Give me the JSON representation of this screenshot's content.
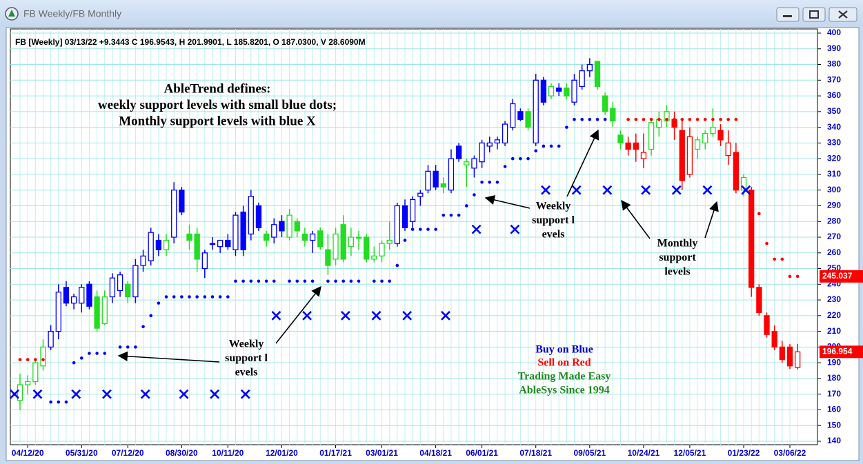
{
  "window_title": "FB Weekly/FB Monthly",
  "chart_data": {
    "type": "candlestick",
    "header": "FB [Weekly] 03/13/22 +9.3443 C 196.9543, H 201.9901, L 185.8201, O 187.0300, V 28.6090M",
    "categories": [
      null,
      "04/12/20",
      null,
      null,
      null,
      null,
      null,
      null,
      "05/31/20",
      null,
      null,
      null,
      null,
      null,
      "07/12/20",
      null,
      null,
      null,
      null,
      null,
      null,
      "08/30/20",
      null,
      null,
      null,
      null,
      null,
      "10/11/20",
      null,
      null,
      null,
      null,
      null,
      null,
      "12/01/20",
      null,
      null,
      null,
      null,
      null,
      null,
      "01/17/21",
      null,
      null,
      null,
      null,
      null,
      "03/01/21",
      null,
      null,
      null,
      null,
      null,
      null,
      "04/18/21",
      null,
      null,
      null,
      null,
      null,
      "06/01/21",
      null,
      null,
      null,
      null,
      null,
      null,
      "07/18/21",
      null,
      null,
      null,
      null,
      null,
      null,
      "09/05/21",
      null,
      null,
      null,
      null,
      null,
      null,
      "10/24/21",
      null,
      null,
      null,
      null,
      null,
      "12/05/21",
      null,
      null,
      null,
      null,
      null,
      null,
      "01/23/22",
      null,
      null,
      null,
      null,
      null,
      "03/06/22",
      null
    ],
    "open": [
      166,
      176,
      178,
      188,
      200,
      210,
      238,
      228,
      228,
      240,
      232,
      215,
      232,
      236,
      240,
      232,
      252,
      255,
      268,
      262,
      270,
      300,
      272,
      272,
      250,
      266,
      264,
      268,
      262,
      286,
      272,
      290,
      272,
      270,
      280,
      270,
      280,
      272,
      268,
      274,
      262,
      256,
      278,
      264,
      270,
      270,
      256,
      258,
      266,
      266,
      290,
      280,
      296,
      300,
      312,
      304,
      300,
      328,
      316,
      314,
      318,
      328,
      330,
      330,
      340,
      350,
      350,
      330,
      370,
      360,
      365,
      365,
      356,
      366,
      376,
      382,
      360,
      352,
      335,
      330,
      330,
      320,
      326,
      340,
      344,
      345,
      338,
      310,
      326,
      330,
      336,
      338,
      322,
      324,
      300,
      300,
      238,
      220,
      210,
      200,
      200,
      187.03
    ],
    "high": [
      183,
      182,
      192,
      205,
      214,
      240,
      242,
      234,
      240,
      242,
      236,
      236,
      247,
      248,
      242,
      256,
      262,
      276,
      272,
      272,
      305,
      302,
      278,
      276,
      262,
      270,
      268,
      272,
      286,
      290,
      300,
      292,
      274,
      282,
      284,
      288,
      282,
      276,
      274,
      276,
      272,
      276,
      284,
      276,
      274,
      272,
      264,
      268,
      280,
      292,
      294,
      296,
      300,
      316,
      316,
      308,
      326,
      330,
      320,
      322,
      332,
      334,
      334,
      344,
      358,
      352,
      352,
      374,
      372,
      368,
      368,
      368,
      374,
      380,
      384,
      382,
      362,
      356,
      338,
      334,
      336,
      336,
      346,
      350,
      354,
      350,
      344,
      340,
      334,
      338,
      352,
      342,
      338,
      330,
      310,
      302,
      240,
      222,
      214,
      204,
      202,
      201.99
    ],
    "low": [
      160,
      170,
      176,
      185,
      198,
      205,
      226,
      224,
      222,
      224,
      210,
      214,
      228,
      232,
      228,
      228,
      248,
      252,
      258,
      258,
      266,
      284,
      262,
      248,
      244,
      262,
      260,
      262,
      258,
      258,
      268,
      274,
      264,
      266,
      270,
      268,
      270,
      264,
      260,
      262,
      246,
      252,
      254,
      258,
      262,
      254,
      254,
      254,
      262,
      264,
      274,
      276,
      290,
      298,
      300,
      298,
      298,
      318,
      302,
      308,
      314,
      324,
      326,
      328,
      338,
      344,
      338,
      328,
      354,
      358,
      360,
      358,
      354,
      364,
      372,
      364,
      348,
      340,
      326,
      322,
      318,
      314,
      322,
      334,
      340,
      332,
      300,
      308,
      320,
      326,
      334,
      328,
      316,
      298,
      296,
      232,
      220,
      206,
      198,
      190,
      186,
      185.82
    ],
    "close": [
      176,
      178,
      190,
      200,
      210,
      235,
      228,
      232,
      238,
      226,
      212,
      232,
      244,
      246,
      232,
      252,
      258,
      273,
      262,
      268,
      300,
      286,
      268,
      256,
      260,
      266,
      268,
      264,
      284,
      262,
      296,
      276,
      268,
      278,
      274,
      284,
      274,
      268,
      272,
      264,
      252,
      272,
      256,
      270,
      270,
      256,
      258,
      266,
      268,
      290,
      276,
      294,
      298,
      312,
      302,
      302,
      320,
      320,
      318,
      320,
      330,
      330,
      332,
      342,
      355,
      345,
      340,
      370,
      356,
      366,
      363,
      360,
      370,
      376,
      380,
      366,
      350,
      344,
      330,
      326,
      326,
      324,
      343,
      345,
      350,
      340,
      306,
      334,
      332,
      336,
      340,
      332,
      330,
      300,
      308,
      238,
      222,
      208,
      200,
      192,
      188,
      196.9543
    ],
    "trend": [
      "g",
      "g",
      "g",
      "g",
      "b",
      "b",
      "b",
      "b",
      "b",
      "b",
      "g",
      "g",
      "b",
      "b",
      "g",
      "b",
      "b",
      "b",
      "b",
      "g",
      "b",
      "b",
      "g",
      "g",
      "b",
      "b",
      "b",
      "b",
      "b",
      "b",
      "b",
      "b",
      "g",
      "b",
      "b",
      "g",
      "g",
      "g",
      "b",
      "g",
      "g",
      "g",
      "g",
      "g",
      "g",
      "g",
      "g",
      "g",
      "g",
      "b",
      "b",
      "b",
      "b",
      "b",
      "b",
      "g",
      "b",
      "b",
      "g",
      "b",
      "b",
      "b",
      "b",
      "b",
      "b",
      "b",
      "g",
      "b",
      "b",
      "g",
      "b",
      "g",
      "b",
      "b",
      "b",
      "g",
      "g",
      "g",
      "g",
      "r",
      "r",
      "r",
      "g",
      "g",
      "g",
      "r",
      "r",
      "r",
      "g",
      "g",
      "g",
      "r",
      "r",
      "r",
      "g",
      "r",
      "r",
      "r",
      "r",
      "r",
      "r",
      "r"
    ],
    "palette": {
      "b": "#0000ff",
      "g": "#22dd22",
      "r": "#ff0000"
    },
    "weekly_support": {
      "color": "#0000ff",
      "values": [
        null,
        null,
        null,
        null,
        165,
        165,
        165,
        190,
        193,
        196,
        196,
        196,
        null,
        200,
        200,
        200,
        213,
        220,
        228,
        232,
        232,
        232,
        232,
        232,
        232,
        232,
        232,
        232,
        242,
        242,
        242,
        242,
        242,
        242,
        null,
        242,
        242,
        242,
        242,
        null,
        242,
        242,
        242,
        242,
        242,
        null,
        242,
        242,
        242,
        252,
        268,
        275,
        275,
        275,
        275,
        284,
        284,
        284,
        290,
        297,
        305,
        305,
        305,
        315,
        320,
        320,
        320,
        325,
        328,
        328,
        328,
        340,
        345,
        345,
        345,
        345,
        345,
        null,
        null,
        null,
        null,
        null,
        null,
        null,
        null,
        null,
        null,
        null,
        null,
        null,
        null,
        null,
        null,
        null,
        null,
        null,
        null,
        null,
        null,
        null,
        null,
        null
      ]
    },
    "weekly_resistance": {
      "color": "#ff0000",
      "values": [
        192,
        192,
        192,
        192,
        null,
        null,
        null,
        null,
        null,
        null,
        null,
        null,
        null,
        null,
        null,
        null,
        null,
        null,
        null,
        null,
        null,
        null,
        null,
        null,
        null,
        null,
        null,
        null,
        null,
        null,
        null,
        null,
        null,
        null,
        null,
        null,
        null,
        null,
        null,
        null,
        null,
        null,
        null,
        null,
        null,
        null,
        null,
        null,
        null,
        null,
        null,
        null,
        null,
        null,
        null,
        null,
        null,
        null,
        null,
        null,
        null,
        null,
        null,
        null,
        null,
        null,
        null,
        null,
        null,
        null,
        null,
        null,
        null,
        null,
        null,
        null,
        null,
        null,
        null,
        345,
        345,
        345,
        345,
        345,
        345,
        345,
        345,
        345,
        345,
        345,
        345,
        345,
        345,
        345,
        null,
        null,
        285,
        266,
        256,
        256,
        245,
        245
      ]
    },
    "monthly_support": {
      "color": "#0000ff",
      "values": [
        170,
        null,
        null,
        170,
        null,
        null,
        null,
        null,
        170,
        null,
        null,
        null,
        170,
        null,
        null,
        null,
        null,
        170,
        null,
        null,
        null,
        null,
        170,
        null,
        null,
        null,
        170,
        null,
        null,
        null,
        170,
        null,
        null,
        null,
        220,
        null,
        null,
        null,
        220,
        null,
        null,
        null,
        null,
        220,
        null,
        null,
        null,
        220,
        null,
        null,
        null,
        220,
        null,
        null,
        null,
        null,
        220,
        null,
        null,
        null,
        275,
        null,
        null,
        null,
        null,
        275,
        null,
        null,
        null,
        300,
        null,
        null,
        null,
        300,
        null,
        null,
        null,
        300,
        null,
        null,
        null,
        null,
        300,
        null,
        null,
        null,
        300,
        null,
        null,
        null,
        300,
        null,
        null,
        null,
        null,
        300,
        null,
        null,
        null,
        null,
        null,
        null
      ]
    },
    "price_labels": [
      245.037,
      196.954
    ],
    "price_label_color": "#ff0000",
    "ylim": [
      140,
      400
    ],
    "yticks": [
      140,
      150,
      160,
      170,
      180,
      190,
      200,
      210,
      220,
      230,
      240,
      250,
      260,
      270,
      280,
      290,
      300,
      310,
      320,
      330,
      340,
      350,
      360,
      370,
      380,
      390,
      400
    ],
    "grid": true,
    "annotations": [
      {
        "lines": [
          "AbleTrend defines:",
          "weekly support levels with small blue dots;",
          "Monthly support levels with blue X"
        ],
        "color": "#000000"
      },
      {
        "lines": [
          "Weekly",
          "support l",
          "evels"
        ],
        "color": "#000000"
      },
      {
        "lines": [
          "Weekly",
          "support l",
          "evels"
        ],
        "color": "#000000"
      },
      {
        "lines": [
          "Monthly",
          "support",
          "levels"
        ],
        "color": "#000000"
      },
      {
        "lines": [
          "Buy on Blue"
        ],
        "color": "#0000cc"
      },
      {
        "lines": [
          "Sell on Red"
        ],
        "color": "#ff0000"
      },
      {
        "lines": [
          "Trading Made Easy"
        ],
        "color": "#228b22"
      },
      {
        "lines": [
          "AbleSys Since 1994"
        ],
        "color": "#228b22"
      }
    ]
  }
}
